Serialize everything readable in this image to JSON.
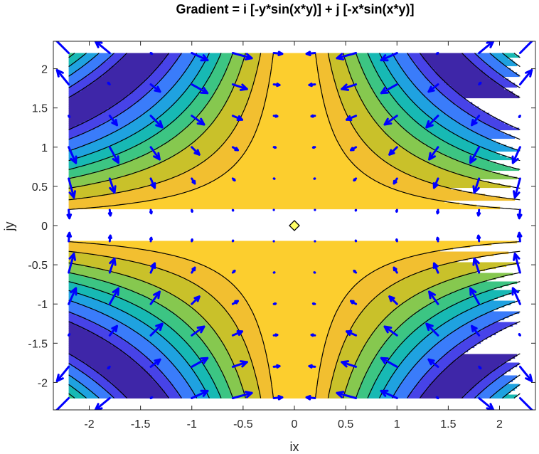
{
  "chart_data": {
    "type": "contour",
    "title": "Gradient = i [-y*sin(x*y)] + j [-x*sin(x*y)]",
    "xlabel": "ix",
    "ylabel": "jy",
    "xlim": [
      -2.35,
      2.35
    ],
    "ylim": [
      -2.35,
      2.35
    ],
    "data_extent": {
      "x": [
        -2.2,
        2.2
      ],
      "y": [
        -2.2,
        2.2
      ]
    },
    "function": "cos(x*y)",
    "gradient": "i [-y*sin(x*y)] + j [-x*sin(x*y)]",
    "contour_levels": [
      -0.9,
      -0.75,
      -0.5,
      -0.25,
      0,
      0.25,
      0.5,
      0.75,
      0.9
    ],
    "xticks": [
      -2,
      -1.5,
      -1,
      -0.5,
      0,
      0.5,
      1,
      1.5,
      2
    ],
    "xtick_labels": [
      "-2",
      "-1.5",
      "-1",
      "-0.5",
      "0",
      "0.5",
      "1",
      "1.5",
      "2"
    ],
    "yticks": [
      -2,
      -1.5,
      -1,
      -0.5,
      0,
      0.5,
      1,
      1.5,
      2
    ],
    "ytick_labels": [
      "-2",
      "-1.5",
      "-1",
      "-0.5",
      "0",
      "0.5",
      "1",
      "1.5",
      "2"
    ],
    "quiver_grid": {
      "start": -2.2,
      "step": 0.4,
      "count": 12
    },
    "critical_point": {
      "x": 0,
      "y": 0,
      "marker": "diamond",
      "color": "#ffff66"
    },
    "colors": {
      "colormap": [
        "#3e26a8",
        "#4743e8",
        "#3a7cfa",
        "#1fa2e0",
        "#17b9b4",
        "#3cc583",
        "#86c84f",
        "#c9c12a",
        "#f2bf30",
        "#fcce2e"
      ],
      "contour_line": "#000000",
      "arrow": "#0000ff"
    }
  }
}
